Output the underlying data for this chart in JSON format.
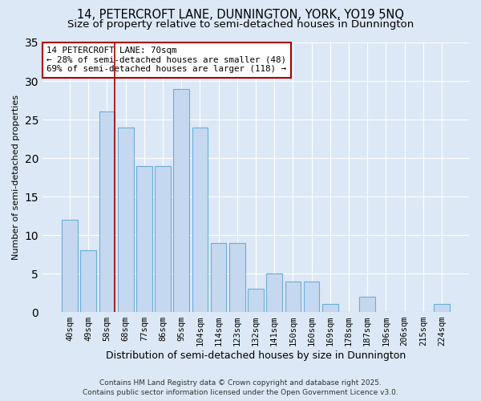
{
  "title": "14, PETERCROFT LANE, DUNNINGTON, YORK, YO19 5NQ",
  "subtitle": "Size of property relative to semi-detached houses in Dunnington",
  "xlabel": "Distribution of semi-detached houses by size in Dunnington",
  "ylabel": "Number of semi-detached properties",
  "categories": [
    "40sqm",
    "49sqm",
    "58sqm",
    "68sqm",
    "77sqm",
    "86sqm",
    "95sqm",
    "104sqm",
    "114sqm",
    "123sqm",
    "132sqm",
    "141sqm",
    "150sqm",
    "160sqm",
    "169sqm",
    "178sqm",
    "187sqm",
    "196sqm",
    "206sqm",
    "215sqm",
    "224sqm"
  ],
  "values": [
    12,
    8,
    26,
    24,
    19,
    19,
    29,
    24,
    9,
    9,
    3,
    5,
    4,
    4,
    1,
    0,
    2,
    0,
    0,
    0,
    1
  ],
  "bar_color": "#c5d8f0",
  "bar_edge_color": "#6baed6",
  "background_color": "#dce8f5",
  "grid_color": "#ffffff",
  "marker_line_color": "#aa0000",
  "annotation_box_color": "#ffffff",
  "annotation_box_edge": "#aa0000",
  "marker_label": "14 PETERCROFT LANE: 70sqm",
  "smaller_pct": "28%",
  "smaller_count": 48,
  "larger_pct": "69%",
  "larger_count": 118,
  "ylim": [
    0,
    35
  ],
  "yticks": [
    0,
    5,
    10,
    15,
    20,
    25,
    30,
    35
  ],
  "footer": "Contains HM Land Registry data © Crown copyright and database right 2025.\nContains public sector information licensed under the Open Government Licence v3.0."
}
